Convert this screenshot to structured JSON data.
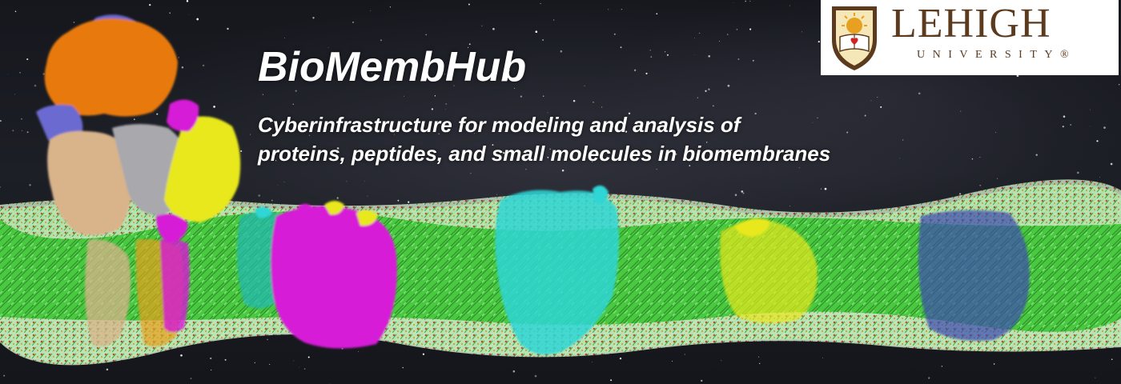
{
  "header": {
    "title": "BioMembHub",
    "subtitle_line1": "Cyberinfrastructure for modeling and analysis of",
    "subtitle_line2": "proteins, peptides, and small molecules in biomembranes"
  },
  "logo": {
    "name": "LEHIGH",
    "sub": "UNIVERSITY",
    "mark": "®",
    "icon": "lehigh-shield-icon",
    "text_color": "#5c3a1e"
  },
  "colors": {
    "membrane": "#3fcf3a",
    "protein_orange": "#e87a10",
    "protein_purple": "#6a6ad0",
    "protein_tan": "#d9b48a",
    "protein_gray": "#a8a8ad",
    "protein_yellow": "#e8e81a",
    "protein_magenta": "#d61ad6",
    "protein_cyan": "#2ed6d6",
    "protein_blue": "#3a4ab0"
  }
}
